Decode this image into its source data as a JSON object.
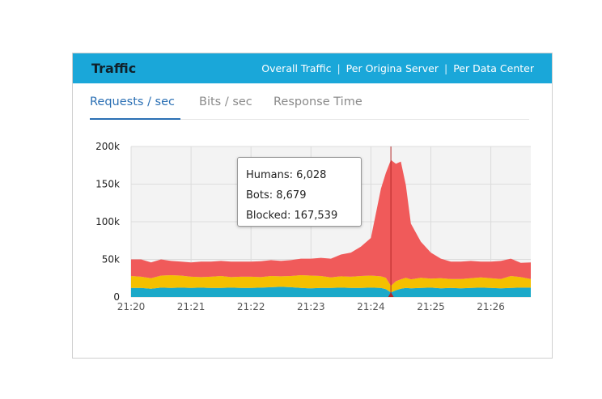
{
  "header": {
    "title": "Traffic",
    "links": [
      "Overall Traffic",
      "Per Origina Server",
      "Per Data Center"
    ],
    "separator": "|"
  },
  "tabs": [
    {
      "label": "Requests / sec",
      "active": true
    },
    {
      "label": "Bits / sec",
      "active": false
    },
    {
      "label": "Response Time",
      "active": false
    }
  ],
  "tooltip": {
    "humans": "Humans: 6,028",
    "bots": "Bots: 8,679",
    "blocked": "Blocked: 167,539"
  },
  "colors": {
    "header_bg": "#1aa7d9",
    "humans": "#1ba9c9",
    "bots": "#f4c000",
    "blocked": "#f05a5a",
    "marker": "#b32828"
  },
  "chart_data": {
    "type": "area",
    "stacked": true,
    "x_ticks": [
      "21:20",
      "21:21",
      "21:22",
      "21:23",
      "21:24",
      "21:25",
      "21:26"
    ],
    "x_range": [
      "21:20",
      "21:26:40"
    ],
    "ylim": [
      0,
      200000
    ],
    "y_ticks": [
      0,
      50000,
      100000,
      150000,
      200000
    ],
    "y_tick_labels": [
      "0",
      "50k",
      "100k",
      "150k",
      "200k"
    ],
    "grid": true,
    "marker_time": "21:24:20",
    "x_minutes": [
      0,
      0.167,
      0.333,
      0.5,
      0.667,
      0.833,
      1,
      1.167,
      1.333,
      1.5,
      1.667,
      1.833,
      2,
      2.167,
      2.333,
      2.5,
      2.667,
      2.833,
      3,
      3.167,
      3.333,
      3.5,
      3.667,
      3.833,
      4,
      4.167,
      4.25,
      4.333,
      4.417,
      4.5,
      4.583,
      4.667,
      4.833,
      5,
      5.167,
      5.333,
      5.5,
      5.667,
      5.833,
      6,
      6.167,
      6.333,
      6.5,
      6.667
    ],
    "series": [
      {
        "name": "Humans",
        "values": [
          12000,
          12000,
          11000,
          12500,
          12000,
          12500,
          12000,
          12500,
          12000,
          12000,
          12500,
          12000,
          12000,
          12500,
          13000,
          13500,
          13000,
          12000,
          11500,
          12000,
          12000,
          12500,
          12000,
          12000,
          12500,
          12000,
          10500,
          6000,
          9000,
          11000,
          12000,
          11500,
          12000,
          12500,
          11500,
          12000,
          11500,
          12000,
          12500,
          12000,
          11500,
          12000,
          12500,
          12500
        ]
      },
      {
        "name": "Bots",
        "values": [
          16000,
          15000,
          14000,
          16000,
          17000,
          16000,
          15000,
          14000,
          15000,
          16000,
          14000,
          15000,
          15000,
          14000,
          15000,
          14000,
          15000,
          17000,
          17000,
          16000,
          14000,
          15000,
          15000,
          16000,
          16000,
          15500,
          15000,
          8700,
          12000,
          12500,
          13500,
          12000,
          13500,
          12000,
          13500,
          12000,
          12500,
          13000,
          13500,
          13000,
          12500,
          16000,
          14000,
          11500
        ]
      },
      {
        "name": "Blocked",
        "values": [
          22000,
          23000,
          21000,
          21500,
          19000,
          18500,
          19000,
          20500,
          20000,
          20000,
          20500,
          20000,
          20000,
          21000,
          21000,
          20500,
          21000,
          22000,
          22500,
          24000,
          25000,
          29000,
          32000,
          39000,
          50000,
          116500,
          139500,
          167500,
          156000,
          156500,
          123000,
          74000,
          48000,
          34500,
          26000,
          23000,
          23000,
          23000,
          21000,
          22000,
          24000,
          23000,
          19000,
          22000
        ]
      }
    ]
  }
}
